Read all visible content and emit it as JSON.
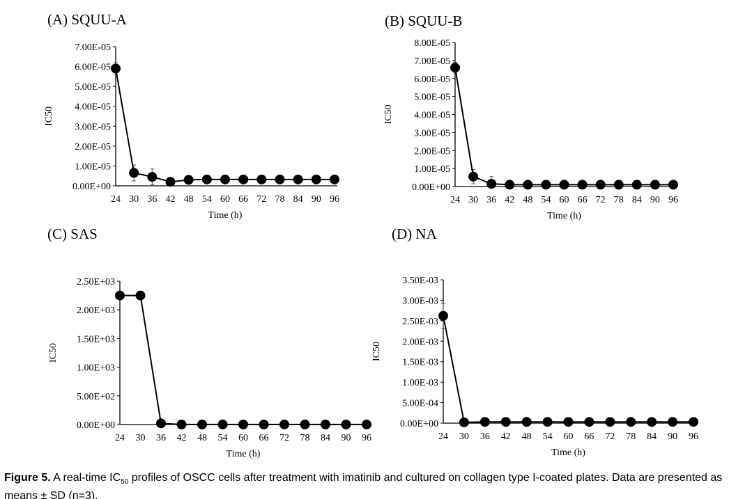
{
  "caption": {
    "label": "Figure 5.",
    "text_1": " A real-time IC",
    "sub": "50",
    "text_2": " profiles of OSCC cells after treatment with imatinib and cultured on collagen type I-coated plates. Data are presented as means ± SD (n=3)."
  },
  "chart_data": [
    {
      "type": "line",
      "title": "(A) SQUU-A",
      "xlabel": "Time (h)",
      "ylabel": "IC50",
      "x": [
        24,
        30,
        36,
        42,
        48,
        54,
        60,
        66,
        72,
        78,
        84,
        90,
        96
      ],
      "y": [
        5.9e-05,
        6.5e-06,
        4.5e-06,
        2e-06,
        3e-06,
        3.2e-06,
        3.2e-06,
        3.2e-06,
        3.2e-06,
        3.2e-06,
        3.2e-06,
        3.2e-06,
        3.2e-06
      ],
      "error": [
        3e-06,
        4e-06,
        4e-06,
        0,
        0,
        0,
        0,
        0,
        0,
        0,
        0,
        0,
        0
      ],
      "ylim": [
        0,
        7e-05
      ],
      "yticks": [
        "0.00E+00",
        "1.00E-05",
        "2.00E-05",
        "3.00E-05",
        "4.00E-05",
        "5.00E-05",
        "6.00E-05",
        "7.00E-05"
      ],
      "xticks": [
        "24",
        "30",
        "36",
        "42",
        "48",
        "54",
        "60",
        "66",
        "72",
        "78",
        "84",
        "90",
        "96"
      ]
    },
    {
      "type": "line",
      "title": "(B) SQUU-B",
      "xlabel": "Time (h)",
      "ylabel": "IC50",
      "x": [
        24,
        30,
        36,
        42,
        48,
        54,
        60,
        66,
        72,
        78,
        84,
        90,
        96
      ],
      "y": [
        6.6e-05,
        5.5e-06,
        1.5e-06,
        1e-06,
        1e-06,
        1e-06,
        1e-06,
        1e-06,
        1e-06,
        1e-06,
        1e-06,
        1e-06,
        1e-06
      ],
      "error": [
        3e-06,
        4e-06,
        4e-06,
        0,
        0,
        0,
        0,
        0,
        0,
        0,
        0,
        0,
        0
      ],
      "ylim": [
        0,
        8e-05
      ],
      "yticks": [
        "0.00E+00",
        "1.00E-05",
        "2.00E-05",
        "3.00E-05",
        "4.00E-05",
        "5.00E-05",
        "6.00E-05",
        "7.00E-05",
        "8.00E-05"
      ],
      "xticks": [
        "24",
        "30",
        "36",
        "42",
        "48",
        "54",
        "60",
        "66",
        "72",
        "78",
        "84",
        "90",
        "96"
      ]
    },
    {
      "type": "line",
      "title": "(C) SAS",
      "xlabel": "Time (h)",
      "ylabel": "IC50",
      "x": [
        24,
        30,
        36,
        42,
        48,
        54,
        60,
        66,
        72,
        78,
        84,
        90,
        96
      ],
      "y": [
        2250,
        2250,
        20,
        1,
        1,
        1,
        1,
        1,
        1,
        1,
        1,
        1,
        1
      ],
      "error": [
        0,
        0,
        0,
        0,
        0,
        0,
        0,
        0,
        0,
        0,
        0,
        0,
        0
      ],
      "ylim": [
        0,
        2500
      ],
      "yticks": [
        "0.00E+00",
        "5.00E+02",
        "1.00E+03",
        "1.50E+03",
        "2.00E+03",
        "2.50E+03"
      ],
      "xticks": [
        "24",
        "30",
        "36",
        "42",
        "48",
        "54",
        "60",
        "66",
        "72",
        "78",
        "84",
        "90",
        "96"
      ]
    },
    {
      "type": "line",
      "title": "(D) NA",
      "xlabel": "Time (h)",
      "ylabel": "IC50",
      "x": [
        24,
        30,
        36,
        42,
        48,
        54,
        60,
        66,
        72,
        78,
        84,
        90,
        96
      ],
      "y": [
        0.00262,
        2e-05,
        3e-05,
        3e-05,
        3e-05,
        3e-05,
        3e-05,
        3e-05,
        3e-05,
        3e-05,
        3e-05,
        3e-05,
        3e-05
      ],
      "error": [
        0.0003,
        0,
        0,
        0,
        0,
        0,
        0,
        0,
        0,
        0,
        0,
        0,
        0
      ],
      "ylim": [
        0,
        0.0035
      ],
      "yticks": [
        "0.00E+00",
        "5.00E-04",
        "1.00E-03",
        "1.50E-03",
        "2.00E-03",
        "2.50E-03",
        "3.00E-03",
        "3.50E-03"
      ],
      "xticks": [
        "24",
        "30",
        "36",
        "42",
        "48",
        "54",
        "60",
        "66",
        "72",
        "78",
        "84",
        "90",
        "96"
      ]
    }
  ]
}
